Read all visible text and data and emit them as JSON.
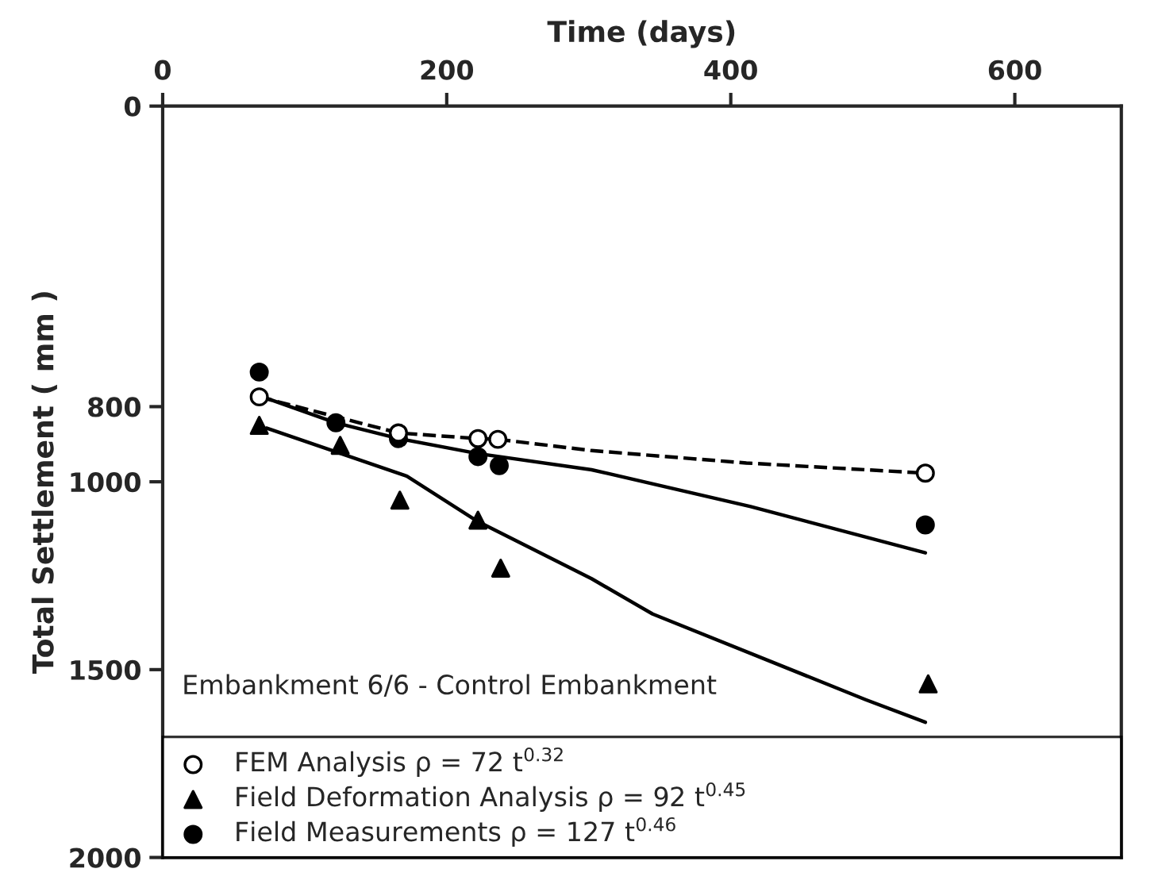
{
  "chart_data": {
    "type": "scatter",
    "xlabel": "Time (days)",
    "ylabel": "Total Settlement ( mm )",
    "xlim": [
      0,
      675
    ],
    "xticks": [
      0,
      200,
      400,
      600
    ],
    "ylim": [
      2000,
      0
    ],
    "yticks": [
      0,
      800,
      1000,
      1500,
      2000
    ],
    "grid": false,
    "legend": "bottom",
    "annotations": [
      "Embankment 6/6 - Control Embankment"
    ],
    "series": [
      {
        "name": "FEM Analysis ρ = 72 t$^{0.32}$",
        "type": "scatter",
        "marker": "circle",
        "color": "#ffffff",
        "x": [
          68,
          166,
          222,
          236,
          537
        ],
        "values": [
          774,
          870,
          885,
          887,
          977
        ]
      },
      {
        "name": "Field Deformation Analysis ρ = 92 t$^{0.45}$",
        "type": "scatter",
        "marker": "triangle",
        "color": "#000000",
        "x": [
          68,
          125,
          167,
          222,
          238,
          539
        ],
        "values": [
          850,
          903,
          1049,
          1102,
          1230,
          1538
        ]
      },
      {
        "name": "Field Measurements ρ = 127 t$^{0.46}$",
        "type": "scatter",
        "marker": "circle",
        "color": "#000000",
        "x": [
          68,
          122,
          166,
          222,
          237,
          537
        ],
        "values": [
          708,
          843,
          885,
          933,
          957,
          1115
        ]
      },
      {
        "type": "line",
        "line_style": "dashed",
        "marker": "none",
        "color": "#000000",
        "x": [
          68,
          166,
          222,
          236,
          302,
          411,
          537
        ],
        "values": [
          774,
          870,
          885,
          887,
          917,
          950,
          977
        ]
      },
      {
        "type": "line",
        "line_style": "solid",
        "marker": "none",
        "color": "#000000",
        "x": [
          68,
          122,
          166,
          222,
          302,
          414,
          537
        ],
        "values": [
          771,
          843,
          885,
          925,
          968,
          1066,
          1189
        ]
      },
      {
        "type": "line",
        "line_style": "solid",
        "marker": "none",
        "color": "#000000",
        "x": [
          73,
          172,
          222,
          302,
          345,
          495,
          537
        ],
        "values": [
          857,
          985,
          1106,
          1258,
          1352,
          1580,
          1640
        ]
      }
    ]
  }
}
